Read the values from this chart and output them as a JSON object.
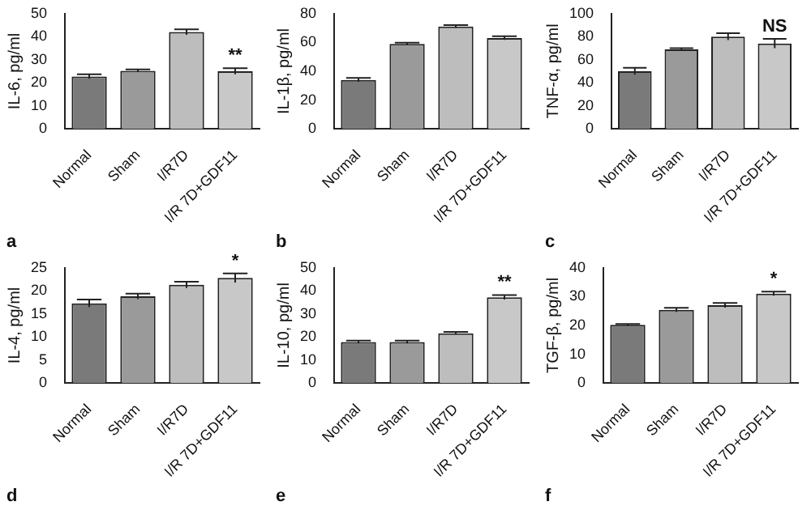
{
  "chart_data": [
    {
      "type": "bar",
      "ylabel": "IL-6, pg/ml",
      "categories": [
        "Normal",
        "Sham",
        "I/R7D",
        "I/R 7D+GDF11"
      ],
      "values": [
        22.7,
        25.2,
        42,
        25
      ],
      "errors": [
        1,
        0.6,
        1.2,
        1.3
      ],
      "colors": [
        "#7a7a7a",
        "#9a9a9a",
        "#bdbdbd",
        "#c8c8c8"
      ],
      "ylim": [
        0,
        50
      ],
      "yticks": [
        0,
        10,
        20,
        30,
        40,
        50
      ],
      "annotations": [
        {
          "text": "**",
          "x": "I/R 7D+GDF11",
          "y": 25
        },
        "a"
      ]
    },
    {
      "type": "bar",
      "ylabel": "IL-1β, pg/ml",
      "categories": [
        "Normal",
        "Sham",
        "I/R7D",
        "I/R 7D+GDF11"
      ],
      "values": [
        34,
        59,
        71,
        63
      ],
      "errors": [
        1.3,
        0.8,
        1,
        1.3
      ],
      "colors": [
        "#7a7a7a",
        "#9a9a9a",
        "#bdbdbd",
        "#c8c8c8"
      ],
      "ylim": [
        0,
        80
      ],
      "yticks": [
        0,
        20,
        40,
        60,
        80
      ],
      "annotations": [
        "b"
      ]
    },
    {
      "type": "bar",
      "ylabel": "TNF-α, pg/ml",
      "categories": [
        "Normal",
        "Sham",
        "I/R7D",
        "I/R 7D+GDF11"
      ],
      "values": [
        50,
        69,
        80,
        74
      ],
      "errors": [
        3,
        1,
        3,
        4
      ],
      "colors": [
        "#7a7a7a",
        "#9a9a9a",
        "#bdbdbd",
        "#c8c8c8"
      ],
      "ylim": [
        0,
        100
      ],
      "yticks": [
        0,
        20,
        40,
        60,
        80,
        100
      ],
      "annotations": [
        {
          "text": "NS",
          "x": "I/R 7D+GDF11",
          "y": 74
        },
        "c"
      ]
    },
    {
      "type": "bar",
      "ylabel": "IL-4, pg/ml",
      "categories": [
        "Normal",
        "Sham",
        "I/R7D",
        "I/R 7D+GDF11"
      ],
      "values": [
        17.3,
        18.8,
        21.3,
        22.8
      ],
      "errors": [
        0.8,
        0.6,
        0.7,
        1
      ],
      "colors": [
        "#7a7a7a",
        "#9a9a9a",
        "#bdbdbd",
        "#c8c8c8"
      ],
      "ylim": [
        0,
        25
      ],
      "yticks": [
        0,
        5,
        10,
        15,
        20,
        25
      ],
      "annotations": [
        {
          "text": "*",
          "x": "I/R 7D+GDF11",
          "y": 22.8
        },
        "d"
      ]
    },
    {
      "type": "bar",
      "ylabel": "IL-10, pg/ml",
      "categories": [
        "Normal",
        "Sham",
        "I/R7D",
        "I/R 7D+GDF11"
      ],
      "values": [
        17.8,
        17.8,
        21.6,
        37.2
      ],
      "errors": [
        0.6,
        0.6,
        0.6,
        1
      ],
      "colors": [
        "#7a7a7a",
        "#9a9a9a",
        "#bdbdbd",
        "#c8c8c8"
      ],
      "ylim": [
        0,
        50
      ],
      "yticks": [
        0,
        10,
        20,
        30,
        40,
        50
      ],
      "annotations": [
        {
          "text": "**",
          "x": "I/R 7D+GDF11",
          "y": 37.2
        },
        "e"
      ]
    },
    {
      "type": "bar",
      "ylabel": "TGF-β, pg/ml",
      "categories": [
        "Normal",
        "Sham",
        "I/R7D",
        "I/R 7D+GDF11"
      ],
      "values": [
        20.2,
        25.4,
        27,
        31
      ],
      "errors": [
        0.3,
        0.7,
        0.8,
        0.7
      ],
      "colors": [
        "#7a7a7a",
        "#9a9a9a",
        "#bdbdbd",
        "#c8c8c8"
      ],
      "ylim": [
        0,
        40
      ],
      "yticks": [
        0,
        10,
        20,
        30,
        40
      ],
      "annotations": [
        {
          "text": "*",
          "x": "I/R 7D+GDF11",
          "y": 31
        },
        "f"
      ]
    }
  ]
}
